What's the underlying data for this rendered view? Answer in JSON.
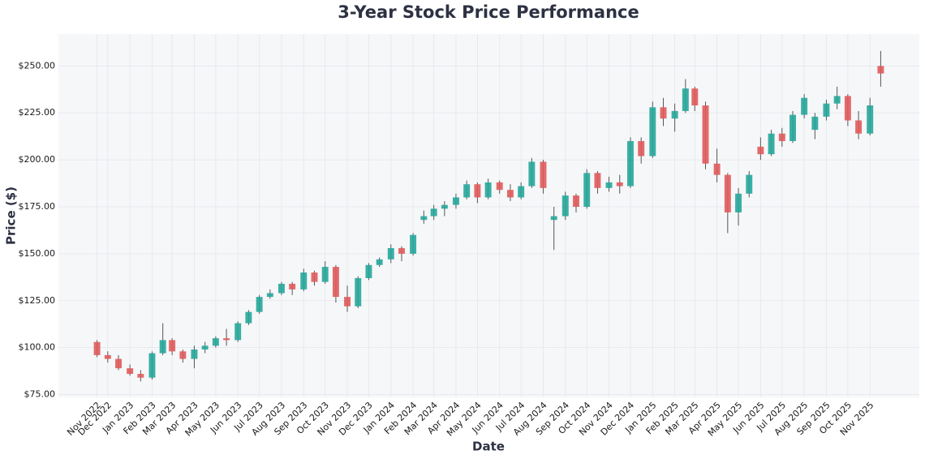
{
  "chart_data": {
    "type": "candlestick",
    "title": "3-Year Stock Price Performance",
    "x_label": "Date",
    "y_label": "Price ($)",
    "up_color": "#26a69a",
    "down_color": "#e05a5a",
    "grid": true,
    "x": [
      "2022-11-16",
      "2022-12-01",
      "2022-12-16",
      "2023-01-01",
      "2023-01-16",
      "2023-02-01",
      "2023-02-16",
      "2023-03-01",
      "2023-03-16",
      "2023-04-01",
      "2023-04-16",
      "2023-05-01",
      "2023-05-16",
      "2023-06-01",
      "2023-06-16",
      "2023-07-01",
      "2023-07-16",
      "2023-08-01",
      "2023-08-16",
      "2023-09-01",
      "2023-09-16",
      "2023-10-01",
      "2023-10-16",
      "2023-11-01",
      "2023-11-16",
      "2023-12-01",
      "2023-12-16",
      "2024-01-01",
      "2024-01-16",
      "2024-02-01",
      "2024-02-16",
      "2024-03-01",
      "2024-03-16",
      "2024-04-01",
      "2024-04-16",
      "2024-05-01",
      "2024-05-16",
      "2024-06-01",
      "2024-06-16",
      "2024-07-01",
      "2024-07-16",
      "2024-08-01",
      "2024-08-16",
      "2024-09-01",
      "2024-09-16",
      "2024-10-01",
      "2024-10-16",
      "2024-11-01",
      "2024-11-16",
      "2024-12-01",
      "2024-12-16",
      "2025-01-01",
      "2025-01-16",
      "2025-02-01",
      "2025-02-16",
      "2025-03-01",
      "2025-03-16",
      "2025-04-01",
      "2025-04-16",
      "2025-05-01",
      "2025-05-16",
      "2025-06-01",
      "2025-06-16",
      "2025-07-01",
      "2025-07-16",
      "2025-08-01",
      "2025-08-16",
      "2025-09-01",
      "2025-09-16",
      "2025-10-01",
      "2025-10-16",
      "2025-11-01",
      "2025-11-16"
    ],
    "open": [
      103,
      96,
      94,
      89,
      86,
      84,
      97,
      104,
      98,
      94,
      99,
      101,
      105,
      104,
      113,
      119,
      127,
      129,
      134,
      131,
      140,
      135,
      143,
      127,
      122,
      137,
      144,
      147,
      153,
      150,
      168,
      170,
      174,
      176,
      180,
      187,
      180,
      188,
      184,
      180,
      186,
      199,
      168,
      170,
      181,
      175,
      193,
      185,
      188,
      186,
      210,
      202,
      228,
      222,
      226,
      238,
      229,
      198,
      192,
      172,
      182,
      207,
      203,
      214,
      210,
      224,
      216,
      223,
      230,
      234,
      221,
      214,
      250
    ],
    "high": [
      104,
      98,
      96,
      91,
      88,
      98,
      113,
      105,
      99,
      101,
      103,
      106,
      110,
      114,
      120,
      128,
      131,
      135,
      135,
      142,
      141,
      146,
      144,
      133,
      138,
      145,
      148,
      155,
      154,
      161,
      173,
      176,
      178,
      182,
      189,
      188,
      190,
      189,
      187,
      188,
      201,
      200,
      175,
      183,
      182,
      195,
      194,
      191,
      192,
      212,
      212,
      231,
      233,
      230,
      243,
      239,
      231,
      206,
      193,
      185,
      194,
      212,
      216,
      217,
      226,
      235,
      225,
      232,
      239,
      235,
      226,
      233,
      258
    ],
    "low": [
      95,
      92,
      88,
      85,
      82,
      83,
      96,
      96,
      92,
      89,
      97,
      100,
      101,
      103,
      112,
      118,
      126,
      128,
      128,
      130,
      133,
      134,
      124,
      119,
      121,
      136,
      143,
      145,
      146,
      149,
      166,
      168,
      170,
      174,
      179,
      177,
      179,
      182,
      178,
      179,
      185,
      182,
      152,
      168,
      172,
      174,
      182,
      183,
      182,
      185,
      198,
      201,
      218,
      215,
      225,
      226,
      195,
      188,
      161,
      165,
      180,
      200,
      202,
      207,
      209,
      222,
      211,
      221,
      227,
      218,
      211,
      213,
      239
    ],
    "close": [
      96,
      94,
      89,
      86,
      84,
      97,
      104,
      98,
      94,
      99,
      101,
      105,
      104,
      113,
      119,
      127,
      129,
      134,
      131,
      140,
      135,
      143,
      127,
      122,
      137,
      144,
      147,
      153,
      150,
      160,
      170,
      174,
      176,
      180,
      187,
      180,
      188,
      184,
      180,
      186,
      199,
      185,
      170,
      181,
      175,
      193,
      185,
      188,
      186,
      210,
      202,
      228,
      222,
      226,
      238,
      229,
      198,
      192,
      172,
      182,
      192,
      203,
      214,
      210,
      224,
      233,
      223,
      230,
      234,
      221,
      214,
      229,
      246
    ],
    "xlim": [
      "2022-09-23",
      "2026-01-09"
    ],
    "xticks": [
      {
        "value": "2022-11-16",
        "label": "Nov 2022"
      },
      {
        "value": "2022-12-01",
        "label": "Dec 2022"
      },
      {
        "value": "2023-01-01",
        "label": "Jan 2023"
      },
      {
        "value": "2023-02-01",
        "label": "Feb 2023"
      },
      {
        "value": "2023-03-01",
        "label": "Mar 2023"
      },
      {
        "value": "2023-04-01",
        "label": "Apr 2023"
      },
      {
        "value": "2023-05-01",
        "label": "May 2023"
      },
      {
        "value": "2023-06-01",
        "label": "Jun 2023"
      },
      {
        "value": "2023-07-01",
        "label": "Jul 2023"
      },
      {
        "value": "2023-08-01",
        "label": "Aug 2023"
      },
      {
        "value": "2023-09-01",
        "label": "Sep 2023"
      },
      {
        "value": "2023-10-01",
        "label": "Oct 2023"
      },
      {
        "value": "2023-11-01",
        "label": "Nov 2023"
      },
      {
        "value": "2023-12-01",
        "label": "Dec 2023"
      },
      {
        "value": "2024-01-01",
        "label": "Jan 2024"
      },
      {
        "value": "2024-02-01",
        "label": "Feb 2024"
      },
      {
        "value": "2024-03-01",
        "label": "Mar 2024"
      },
      {
        "value": "2024-04-01",
        "label": "Apr 2024"
      },
      {
        "value": "2024-05-01",
        "label": "May 2024"
      },
      {
        "value": "2024-06-01",
        "label": "Jun 2024"
      },
      {
        "value": "2024-07-01",
        "label": "Jul 2024"
      },
      {
        "value": "2024-08-01",
        "label": "Aug 2024"
      },
      {
        "value": "2024-09-01",
        "label": "Sep 2024"
      },
      {
        "value": "2024-10-01",
        "label": "Oct 2024"
      },
      {
        "value": "2024-11-01",
        "label": "Nov 2024"
      },
      {
        "value": "2024-12-01",
        "label": "Dec 2024"
      },
      {
        "value": "2025-01-01",
        "label": "Jan 2025"
      },
      {
        "value": "2025-02-01",
        "label": "Feb 2025"
      },
      {
        "value": "2025-03-01",
        "label": "Mar 2025"
      },
      {
        "value": "2025-04-01",
        "label": "Apr 2025"
      },
      {
        "value": "2025-05-01",
        "label": "May 2025"
      },
      {
        "value": "2025-06-01",
        "label": "Jun 2025"
      },
      {
        "value": "2025-07-01",
        "label": "Jul 2025"
      },
      {
        "value": "2025-08-01",
        "label": "Aug 2025"
      },
      {
        "value": "2025-09-01",
        "label": "Sep 2025"
      },
      {
        "value": "2025-10-01",
        "label": "Oct 2025"
      },
      {
        "value": "2025-11-01",
        "label": "Nov 2025"
      }
    ],
    "ylim": [
      73.5,
      267
    ],
    "yticks": [
      {
        "value": 75,
        "label": "$75.00"
      },
      {
        "value": 100,
        "label": "$100.00"
      },
      {
        "value": 125,
        "label": "$125.00"
      },
      {
        "value": 150,
        "label": "$150.00"
      },
      {
        "value": 175,
        "label": "$175.00"
      },
      {
        "value": 200,
        "label": "$200.00"
      },
      {
        "value": 225,
        "label": "$225.00"
      },
      {
        "value": 250,
        "label": "$250.00"
      }
    ]
  }
}
